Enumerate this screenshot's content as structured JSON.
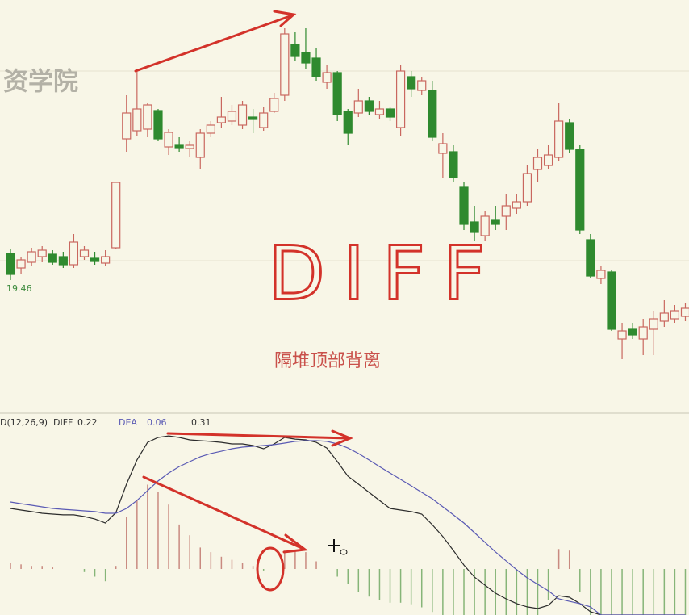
{
  "watermark": "资学院",
  "chart_data": [
    {
      "type": "candlestick",
      "annotations": [
        "DIFF",
        "隔堆顶部背离"
      ],
      "up_color": "#c9675f",
      "down_color": "#2f8a2f",
      "ylim": [
        16.4,
        26.4
      ],
      "open": [
        20.12,
        19.76,
        19.9,
        20.04,
        20.1,
        20.04,
        19.84,
        20.04,
        20.0,
        19.88,
        20.26,
        22.96,
        23.16,
        23.2,
        23.66,
        22.76,
        22.8,
        22.72,
        22.5,
        23.1,
        23.36,
        23.4,
        23.3,
        23.5,
        23.24,
        23.64,
        24.04,
        25.3,
        25.1,
        24.96,
        24.36,
        24.6,
        23.64,
        23.6,
        23.9,
        23.56,
        23.7,
        23.24,
        24.5,
        24.16,
        24.16,
        22.6,
        22.64,
        21.76,
        20.9,
        20.56,
        20.96,
        21.04,
        21.24,
        21.4,
        22.2,
        22.3,
        22.5,
        23.36,
        22.7,
        20.46,
        19.5,
        19.66,
        18.0,
        18.24,
        18.0,
        18.24,
        18.44,
        18.5,
        18.56
      ],
      "high": [
        20.24,
        20.04,
        20.26,
        20.3,
        20.2,
        20.16,
        20.6,
        20.3,
        20.16,
        20.2,
        21.9,
        24.04,
        24.7,
        23.84,
        23.7,
        23.2,
        23.0,
        22.9,
        23.2,
        23.4,
        24.0,
        23.8,
        23.9,
        23.7,
        23.76,
        24.1,
        25.7,
        25.6,
        25.7,
        25.2,
        24.8,
        24.64,
        23.7,
        24.2,
        24.0,
        23.9,
        23.76,
        24.8,
        24.64,
        24.5,
        24.4,
        23.1,
        22.8,
        21.9,
        21.3,
        21.16,
        21.3,
        21.6,
        21.6,
        22.3,
        22.7,
        22.8,
        23.84,
        23.44,
        22.8,
        20.6,
        19.8,
        19.7,
        18.4,
        18.4,
        18.5,
        18.7,
        18.96,
        18.84,
        18.9
      ],
      "low": [
        19.46,
        19.6,
        19.8,
        19.9,
        19.84,
        19.76,
        19.76,
        19.96,
        19.84,
        19.8,
        20.24,
        22.64,
        23.04,
        23.0,
        22.9,
        22.56,
        22.64,
        22.5,
        22.2,
        23.0,
        23.24,
        23.3,
        23.2,
        23.1,
        23.16,
        23.6,
        23.9,
        24.9,
        24.7,
        24.4,
        24.2,
        23.4,
        22.8,
        23.5,
        23.56,
        23.44,
        23.4,
        23.04,
        24.0,
        24.04,
        22.9,
        22.0,
        21.9,
        20.7,
        20.44,
        20.44,
        20.7,
        20.7,
        21.1,
        21.3,
        21.9,
        22.2,
        22.4,
        22.6,
        20.6,
        19.5,
        19.36,
        18.2,
        17.5,
        18.0,
        17.6,
        17.6,
        18.3,
        18.4,
        18.44
      ],
      "close": [
        19.6,
        19.96,
        20.16,
        20.2,
        19.9,
        19.84,
        20.4,
        20.2,
        19.92,
        20.04,
        21.88,
        23.6,
        23.7,
        23.8,
        22.96,
        23.12,
        22.74,
        22.8,
        23.1,
        23.3,
        23.5,
        23.64,
        23.8,
        23.44,
        23.6,
        23.96,
        25.56,
        25.0,
        24.84,
        24.5,
        24.6,
        23.56,
        23.1,
        23.9,
        23.64,
        23.7,
        23.5,
        24.64,
        24.2,
        24.4,
        23.0,
        22.84,
        22.0,
        20.84,
        20.64,
        21.04,
        20.84,
        21.3,
        21.4,
        22.1,
        22.5,
        22.56,
        23.4,
        22.7,
        20.7,
        19.56,
        19.7,
        18.24,
        18.2,
        18.1,
        18.3,
        18.5,
        18.64,
        18.7,
        18.76
      ]
    },
    {
      "type": "macd",
      "title": "D(12,26,9)",
      "ylim": [
        -0.3,
        1.0
      ],
      "series": [
        {
          "name": "DIFF",
          "color": "#2b2b2b",
          "current": 0.22,
          "values": [
            0.395,
            0.384,
            0.374,
            0.363,
            0.358,
            0.353,
            0.353,
            0.342,
            0.326,
            0.3,
            0.368,
            0.553,
            0.711,
            0.826,
            0.858,
            0.868,
            0.858,
            0.842,
            0.837,
            0.832,
            0.826,
            0.816,
            0.816,
            0.805,
            0.784,
            0.816,
            0.858,
            0.847,
            0.842,
            0.826,
            0.789,
            0.7,
            0.605,
            0.553,
            0.5,
            0.447,
            0.395,
            0.384,
            0.374,
            0.358,
            0.289,
            0.211,
            0.121,
            0.026,
            -0.053,
            -0.105,
            -0.158,
            -0.195,
            -0.226,
            -0.247,
            -0.258,
            -0.237,
            -0.174,
            -0.184,
            -0.226,
            -0.279,
            -0.3,
            -0.3,
            -0.3,
            -0.3,
            -0.3,
            -0.3,
            -0.3,
            -0.3,
            -0.3
          ]
        },
        {
          "name": "DEA",
          "color": "#5a5ab4",
          "current": 0.06,
          "values": [
            0.437,
            0.426,
            0.416,
            0.405,
            0.395,
            0.389,
            0.384,
            0.379,
            0.374,
            0.363,
            0.363,
            0.395,
            0.447,
            0.511,
            0.574,
            0.626,
            0.668,
            0.7,
            0.732,
            0.753,
            0.768,
            0.784,
            0.795,
            0.8,
            0.805,
            0.811,
            0.821,
            0.832,
            0.837,
            0.837,
            0.832,
            0.816,
            0.789,
            0.753,
            0.711,
            0.668,
            0.626,
            0.584,
            0.542,
            0.5,
            0.458,
            0.405,
            0.353,
            0.3,
            0.237,
            0.174,
            0.111,
            0.053,
            -0.005,
            -0.058,
            -0.1,
            -0.142,
            -0.195,
            -0.211,
            -0.226,
            -0.247,
            -0.3,
            -0.3,
            -0.3,
            -0.3,
            -0.3,
            -0.3,
            -0.3,
            -0.3,
            -0.3
          ]
        }
      ],
      "histogram": {
        "up_color": "#c98a80",
        "down_color": "#86b578",
        "current": 0.31,
        "values": [
          0.04,
          0.03,
          0.02,
          0.02,
          0.01,
          0,
          0,
          -0.02,
          -0.05,
          -0.08,
          0.02,
          0.34,
          0.45,
          0.55,
          0.5,
          0.42,
          0.29,
          0.22,
          0.14,
          0.11,
          0.08,
          0.06,
          0.04,
          0.02,
          -0.01,
          0,
          0.12,
          0.12,
          0.11,
          0.05,
          0,
          -0.05,
          -0.1,
          -0.15,
          -0.18,
          -0.2,
          -0.22,
          -0.22,
          -0.23,
          -0.25,
          -0.28,
          -0.3,
          -0.3,
          -0.3,
          -0.3,
          -0.3,
          -0.3,
          -0.3,
          -0.3,
          -0.3,
          -0.3,
          -0.2,
          0.13,
          0.12,
          -0.15,
          -0.3,
          -0.3,
          -0.3,
          -0.3,
          -0.3,
          -0.3,
          -0.3,
          -0.3,
          -0.3,
          -0.3
        ]
      }
    }
  ]
}
